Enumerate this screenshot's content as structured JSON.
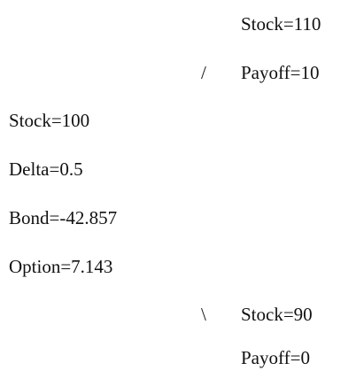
{
  "up": {
    "branch": "/",
    "lines": [
      "Stock=110",
      "Payoff=10"
    ]
  },
  "root": {
    "lines": [
      "Stock=100",
      "Delta=0.5",
      "Bond=-42.857",
      "Option=7.143"
    ]
  },
  "down": {
    "branch": "\\",
    "lines": [
      "Stock=90",
      "Payoff=0"
    ]
  }
}
